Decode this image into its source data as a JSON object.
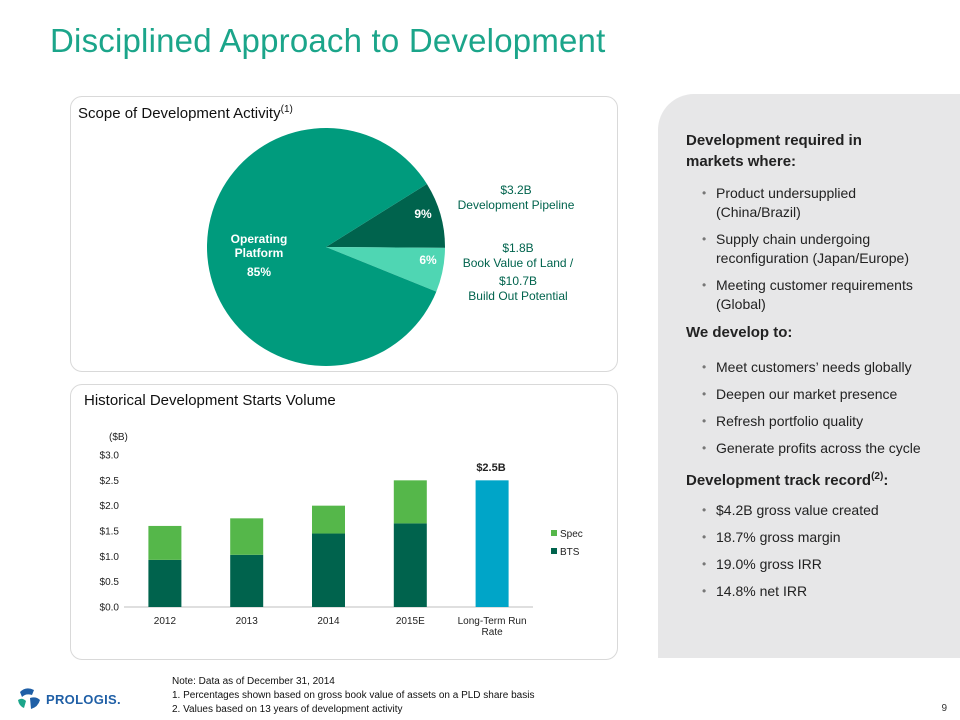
{
  "title": "Disciplined Approach to Development",
  "pie_panel": {
    "title": "Scope of Development Activity",
    "title_sup": "(1)",
    "slices": [
      {
        "label_line1": "Operating",
        "label_line2": "Platform",
        "pct": "85%",
        "value": 85,
        "color": "#009b7d"
      },
      {
        "pct": "9%",
        "value": 9,
        "color": "#00634d"
      },
      {
        "pct": "6%",
        "value": 6,
        "color": "#4fd6b3"
      }
    ],
    "callouts": {
      "pipeline_value": "$3.2B",
      "pipeline_label": "Development Pipeline",
      "land_value": "$1.8B",
      "land_label": "Book Value of Land /",
      "buildout_value": "$10.7B",
      "buildout_label": "Build Out Potential"
    },
    "callout_color": "#00634d"
  },
  "bar_panel": {
    "title": "Historical Development Starts Volume",
    "unit": "($B)",
    "highlight_label": "$2.5B"
  },
  "chart_data": {
    "type": "bar",
    "stacked": true,
    "categories": [
      "2012",
      "2013",
      "2014",
      "2015E",
      "Long-Term Run Rate"
    ],
    "category_lines": [
      [
        "2012"
      ],
      [
        "2013"
      ],
      [
        "2014"
      ],
      [
        "2015E"
      ],
      [
        "Long-Term Run",
        "Rate"
      ]
    ],
    "series": [
      {
        "name": "BTS",
        "values": [
          0.93,
          1.03,
          1.45,
          1.65,
          null
        ],
        "color": "#00634d"
      },
      {
        "name": "Spec",
        "values": [
          0.67,
          0.72,
          0.55,
          0.85,
          null
        ],
        "color": "#55b74a"
      },
      {
        "name": "",
        "values": [
          null,
          null,
          null,
          null,
          2.5
        ],
        "color": "#00a5c8"
      }
    ],
    "yticks": [
      "$0.0",
      "$0.5",
      "$1.0",
      "$1.5",
      "$2.0",
      "$2.5",
      "$3.0"
    ],
    "ylim": [
      0,
      3.0
    ],
    "legend": [
      "Spec",
      "BTS"
    ],
    "legend_placement": "right"
  },
  "right_panel": {
    "heading1_line1": "Development required in",
    "heading1_line2": "markets where:",
    "list1": [
      {
        "l1": "Product undersupplied",
        "l2": "(China/Brazil)"
      },
      {
        "l1": "Supply chain undergoing",
        "l2": "reconfiguration (Japan/Europe)"
      },
      {
        "l1": "Meeting customer requirements",
        "l2": "(Global)"
      }
    ],
    "heading2": "We develop to:",
    "list2": [
      "Meet customers’ needs globally",
      "Deepen our market presence",
      "Refresh portfolio quality",
      "Generate profits across the cycle"
    ],
    "heading3": "Development track record",
    "heading3_sup": "(2)",
    "heading3_suffix": ":",
    "list3": [
      "$4.2B gross value created",
      "18.7% gross margin",
      "19.0% gross IRR",
      "14.8% net IRR"
    ],
    "bullet": "•"
  },
  "notes": {
    "line1": "Note: Data as of December 31, 2014",
    "line2": "1. Percentages shown based on gross book value of assets on a PLD share basis",
    "line3": "2. Values based on 13 years of development activity"
  },
  "logo_text": "PROLOGIS.",
  "logo_icon": "globe-icon",
  "page_number": "9"
}
